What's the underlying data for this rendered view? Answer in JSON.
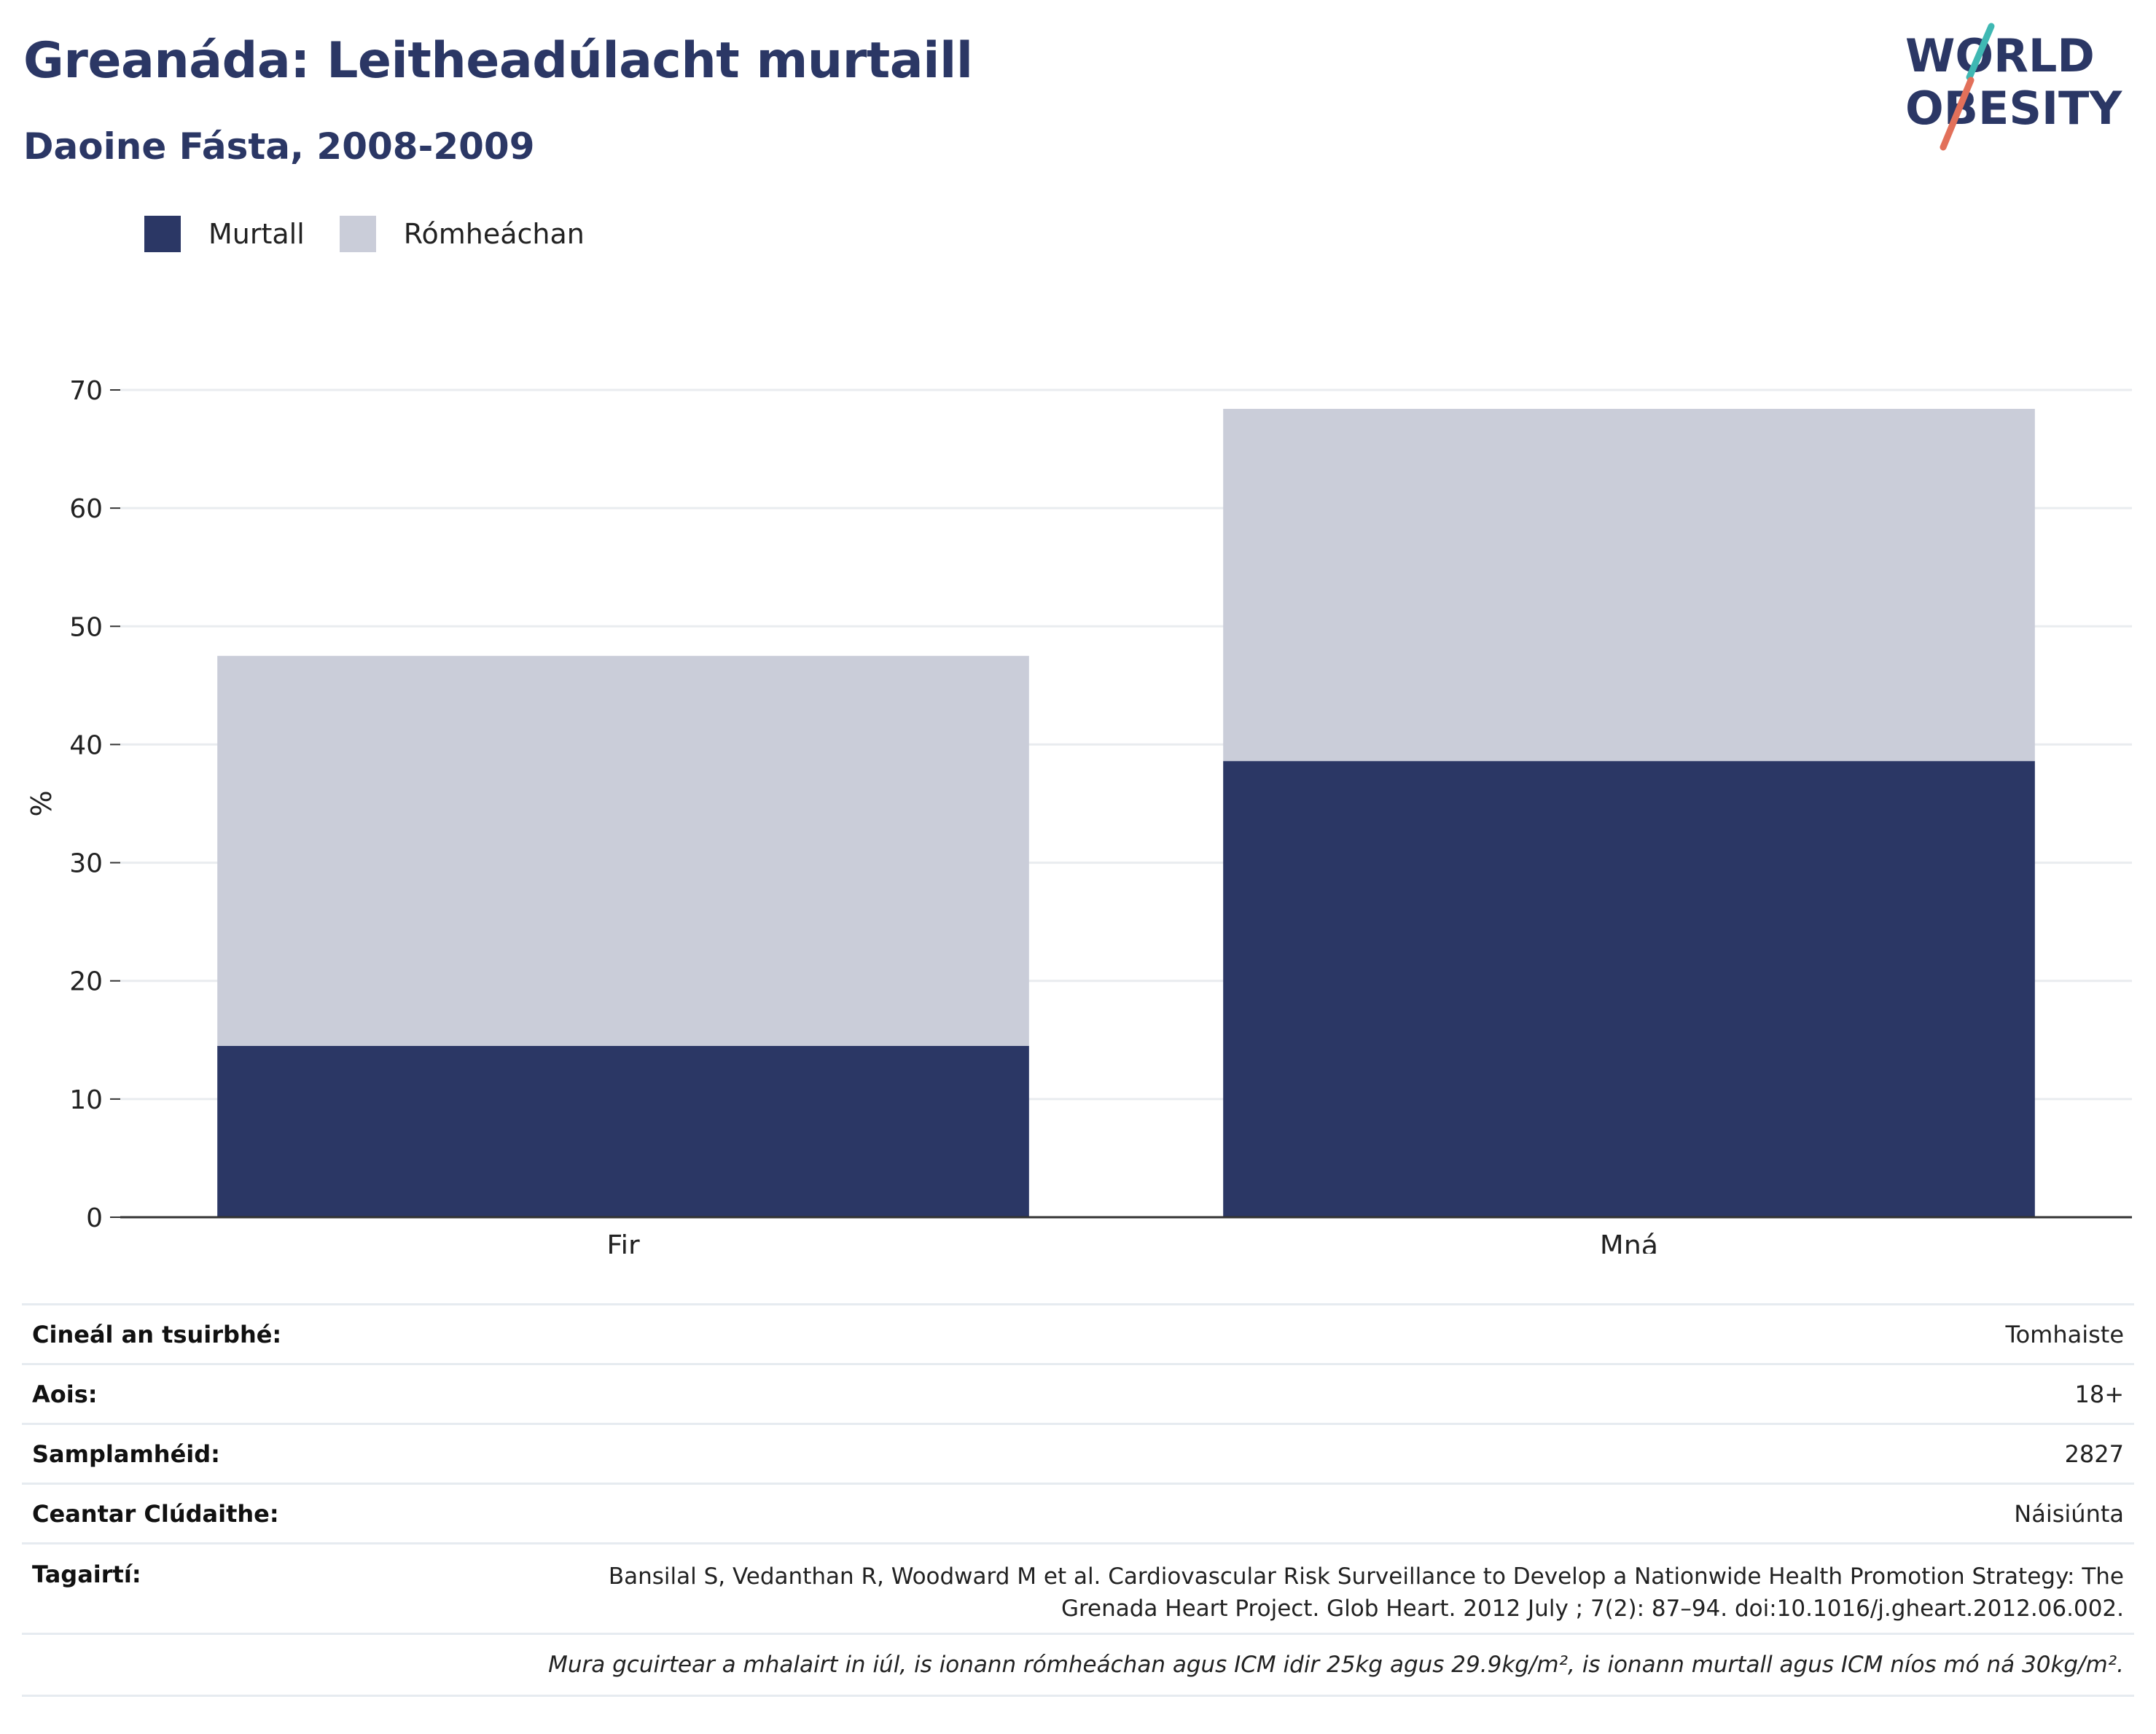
{
  "header": {
    "title": "Greanáda: Leitheadúlacht murtaill",
    "subtitle": "Daoine Fásta, 2008-2009"
  },
  "logo": {
    "line1": "WORLD",
    "line2": "OBESITY",
    "colors": {
      "text": "#2b3765",
      "slash_top": "#3fb8b3",
      "slash_bottom": "#e2705a"
    }
  },
  "legend": {
    "items": [
      {
        "label": "Murtall",
        "color": "#2b3765"
      },
      {
        "label": "Rómheáchan",
        "color": "#cacdd9"
      }
    ]
  },
  "chart_data": {
    "type": "bar",
    "stacked": true,
    "categories": [
      "Fir",
      "Mná"
    ],
    "series": [
      {
        "name": "Murtall",
        "values": [
          14.5,
          38.6
        ],
        "color": "#2b3765"
      },
      {
        "name": "Rómheáchan",
        "values": [
          33.0,
          29.8
        ],
        "color": "#cacdd9"
      }
    ],
    "ylabel": "%",
    "ylim": [
      0,
      70
    ],
    "yticks": [
      0,
      10,
      20,
      30,
      40,
      50,
      60,
      70
    ],
    "grid": true,
    "legend_position": "top-left"
  },
  "info": {
    "rows": [
      {
        "label": "Cineál an tsuirbhé:",
        "value": "Tomhaiste"
      },
      {
        "label": "Aois:",
        "value": "18+"
      },
      {
        "label": "Samplamhéid:",
        "value": "2827"
      },
      {
        "label": "Ceantar Clúdaithe:",
        "value": "Náisiúnta"
      }
    ],
    "references": {
      "label": "Tagairtí:",
      "value": "Bansilal S, Vedanthan R, Woodward M et al. Cardiovascular Risk Surveillance to Develop a Nationwide Health Promotion Strategy: The Grenada Heart Project. Glob Heart. 2012 July ; 7(2): 87–94. doi:10.1016/j.gheart.2012.06.002."
    },
    "note": "Mura gcuirtear a mhalairt in iúl, is ionann rómheáchan agus ICM idir 25kg agus 29.9kg/m², is ionann murtall agus ICM níos mó ná 30kg/m²."
  }
}
